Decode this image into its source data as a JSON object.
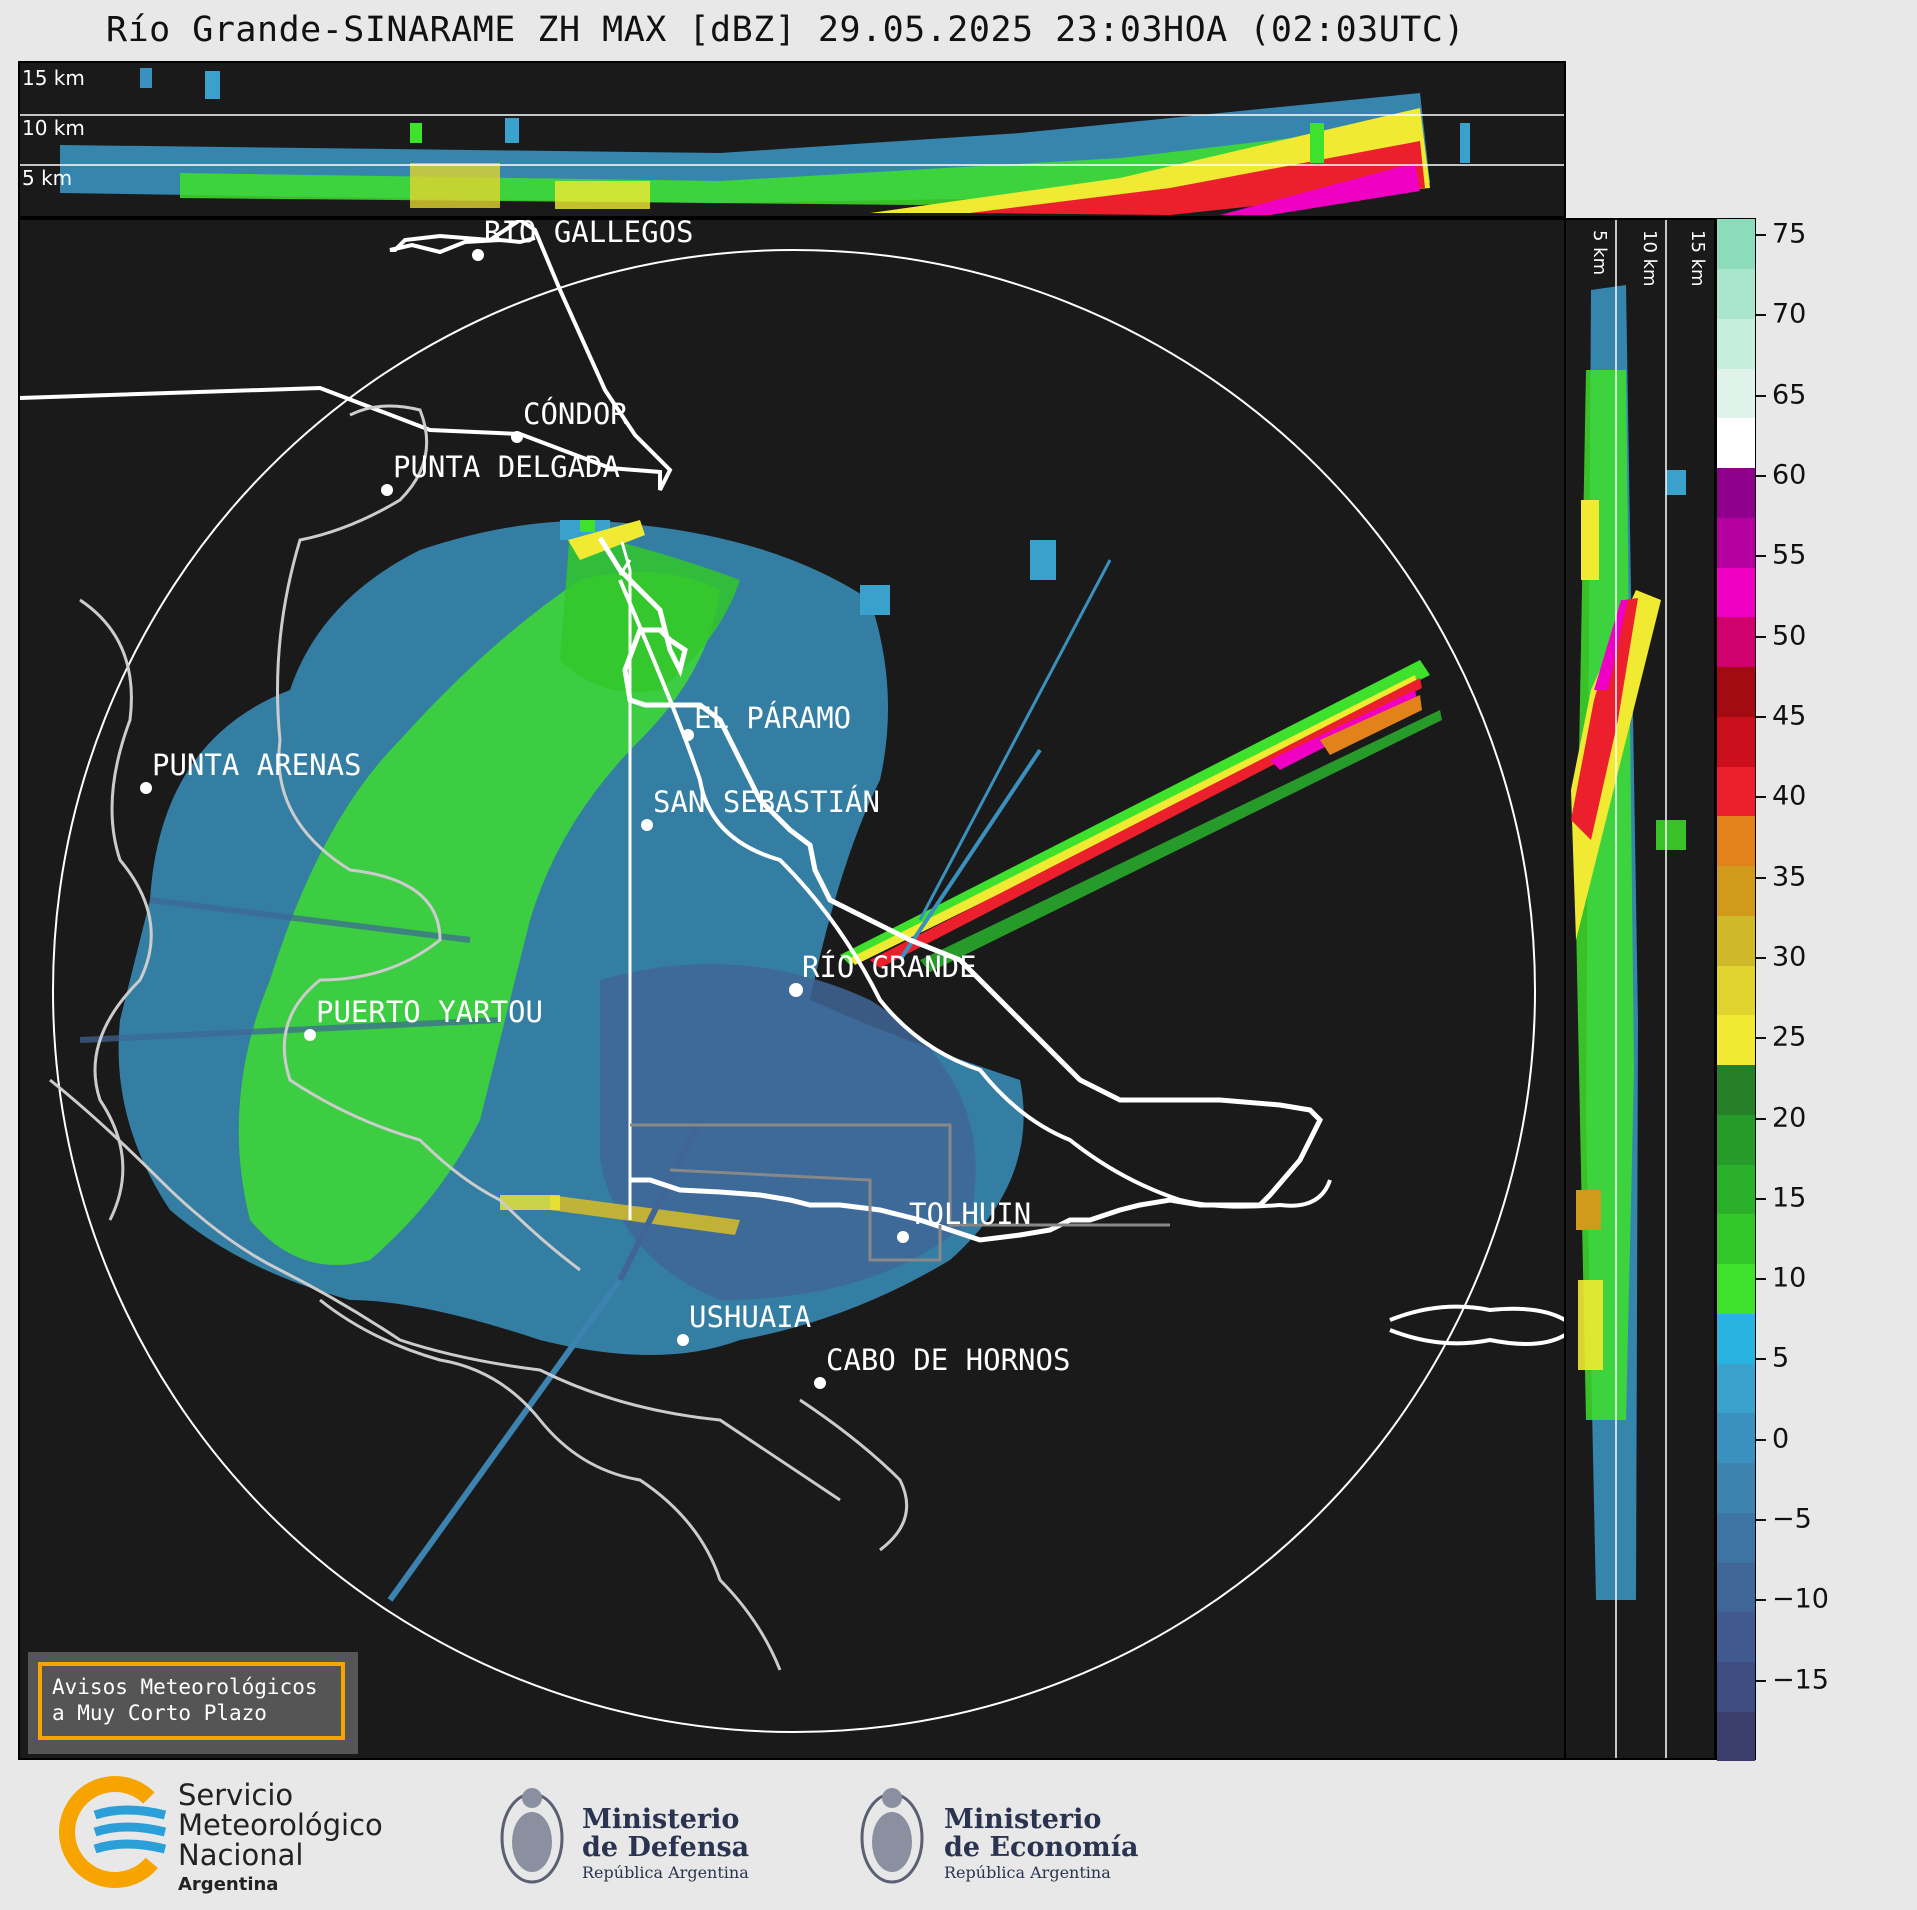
{
  "title": "Río Grande-SINARAME ZH MAX [dBZ] 29.05.2025 23:03HOA (02:03UTC)",
  "top_panel": {
    "height_labels": [
      "15 km",
      "10 km",
      "5 km"
    ]
  },
  "side_panel": {
    "height_labels": [
      "5 km",
      "10 km",
      "15 km"
    ]
  },
  "map": {
    "places": [
      {
        "name": "RÍO GALLEGOS"
      },
      {
        "name": "CÓNDOR"
      },
      {
        "name": "PUNTA DELGADA"
      },
      {
        "name": "EL PÁRAMO"
      },
      {
        "name": "PUNTA ARENAS"
      },
      {
        "name": "SAN SEBASTIÁN"
      },
      {
        "name": "RÍO GRANDE"
      },
      {
        "name": "PUERTO YARTOU"
      },
      {
        "name": "TOLHUIN"
      },
      {
        "name": "USHUAIA"
      },
      {
        "name": "CABO DE HORNOS"
      }
    ]
  },
  "colorbar": {
    "unit": "dBZ",
    "min": -20,
    "max": 76,
    "ticks": [
      75,
      70,
      65,
      60,
      55,
      50,
      45,
      40,
      35,
      30,
      25,
      20,
      15,
      10,
      5,
      0,
      -5,
      -10,
      -15
    ],
    "tick_labels": [
      "75",
      "70",
      "65",
      "60",
      "55",
      "50",
      "45",
      "40",
      "35",
      "30",
      "25",
      "20",
      "15",
      "10",
      "5",
      "0",
      "−5",
      "−10",
      "−15"
    ],
    "colors": [
      "#3b3d6b",
      "#3f4c82",
      "#40598f",
      "#3f6697",
      "#3e74a2",
      "#3c83b0",
      "#3a91bd",
      "#3aa0cc",
      "#29b3e0",
      "#3ee12b",
      "#33c72a",
      "#2ab02a",
      "#279b2a",
      "#257f27",
      "#f0ea32",
      "#e2d42e",
      "#cfb92b",
      "#d29a1b",
      "#e3821b",
      "#ec1f2d",
      "#cb0e1c",
      "#a20b12",
      "#d1006f",
      "#ef00c3",
      "#b6009f",
      "#8f008c",
      "#ffffff",
      "#dff3ea",
      "#c5eedd",
      "#a9e6cd",
      "#8cdcbc"
    ]
  },
  "aviso": {
    "line1": "Avisos Meteorológicos",
    "line2": "a Muy Corto Plazo"
  },
  "footer": {
    "smn": [
      "Servicio",
      "Meteorológico",
      "Nacional",
      "Argentina"
    ],
    "defensa": [
      "Ministerio",
      "de Defensa",
      "República Argentina"
    ],
    "economia": [
      "Ministerio",
      "de Economía",
      "República Argentina"
    ]
  }
}
